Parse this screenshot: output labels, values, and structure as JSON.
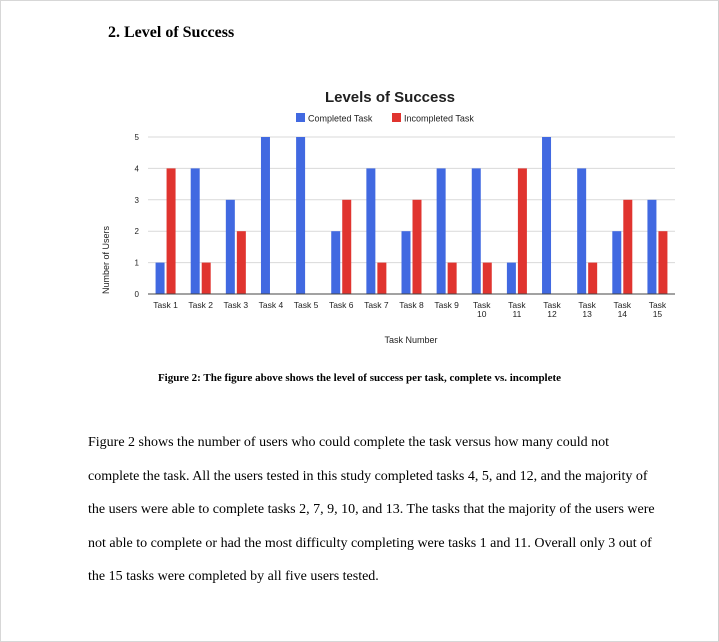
{
  "section": {
    "title": "2. Level of Success"
  },
  "chart_data": {
    "type": "bar",
    "title": "Levels of Success",
    "xlabel": "Task Number",
    "ylabel": "Number of Users",
    "ylim": [
      0,
      5
    ],
    "yticks": [
      0,
      1,
      2,
      3,
      4,
      5
    ],
    "grid": true,
    "legend_position": "top",
    "categories": [
      [
        "Task 1"
      ],
      [
        "Task 2"
      ],
      [
        "Task 3"
      ],
      [
        "Task 4"
      ],
      [
        "Task 5"
      ],
      [
        "Task 6"
      ],
      [
        "Task 7"
      ],
      [
        "Task 8"
      ],
      [
        "Task 9"
      ],
      [
        "Task",
        "10"
      ],
      [
        "Task",
        "11"
      ],
      [
        "Task",
        "12"
      ],
      [
        "Task",
        "13"
      ],
      [
        "Task",
        "14"
      ],
      [
        "Task",
        "15"
      ]
    ],
    "series": [
      {
        "name": "Completed Task",
        "color": "#4169e1",
        "values": [
          1,
          4,
          3,
          5,
          5,
          2,
          4,
          2,
          4,
          4,
          1,
          5,
          4,
          2,
          3
        ]
      },
      {
        "name": "Incompleted Task",
        "color": "#e0342f",
        "values": [
          4,
          1,
          2,
          0,
          0,
          3,
          1,
          3,
          1,
          1,
          4,
          0,
          1,
          3,
          2
        ]
      }
    ]
  },
  "figure": {
    "caption": "Figure 2: The figure above shows the level of success per task, complete vs. incomplete"
  },
  "body": {
    "paragraph": "Figure 2 shows the number of users who could complete the task versus how many could not complete the task. All the users tested in this study completed tasks 4, 5, and 12, and the majority of the users were able to complete tasks 2, 7, 9, 10, and 13. The tasks that the majority of the users were not able to complete or had the most difficulty completing were tasks 1 and 11. Overall only 3 out of the 15 tasks were completed by all five users tested."
  }
}
